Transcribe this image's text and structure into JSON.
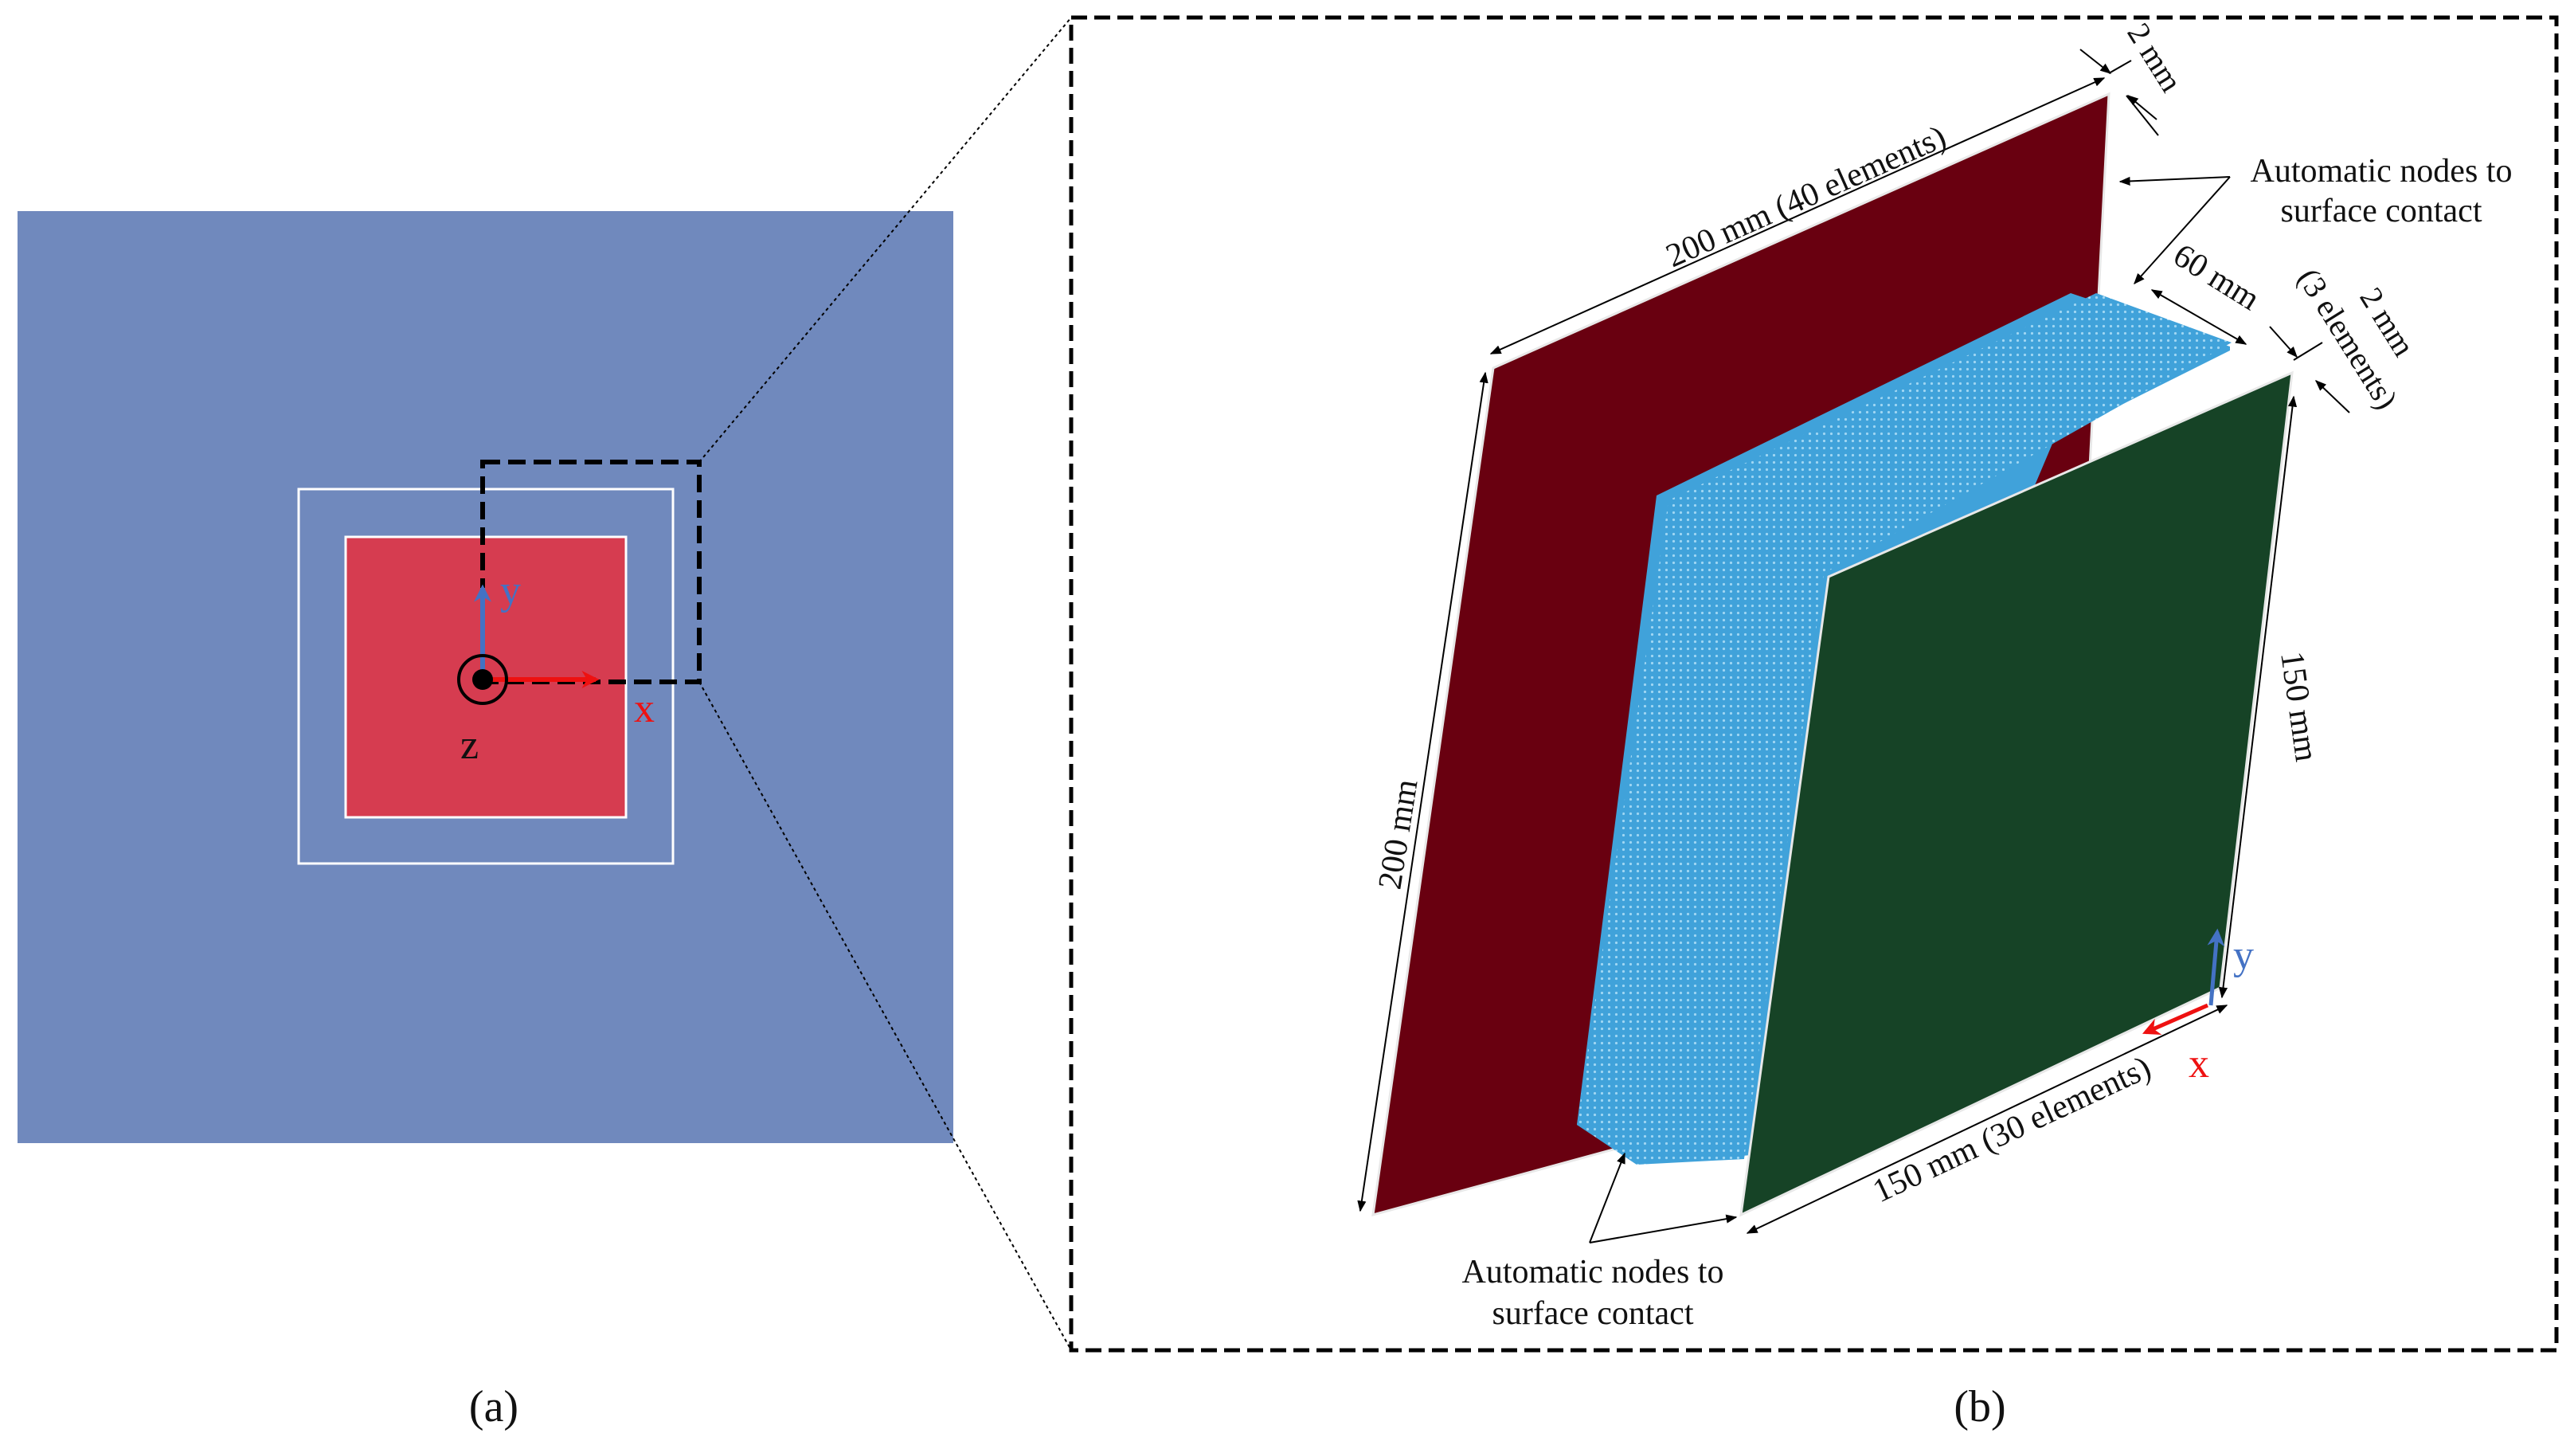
{
  "panel_a": {
    "caption": "(a)",
    "axis_x": "x",
    "axis_y": "y",
    "axis_z": "z"
  },
  "panel_b": {
    "caption": "(b)",
    "dim_back_thickness": "2 mm",
    "dim_back_width": "200 mm (40 elements)",
    "dim_back_height": "200 mm",
    "dim_core_depth": "60 mm",
    "dim_front_thickness": "2 mm",
    "dim_front_thickness_elements": "(3 elements)",
    "dim_front_height": "150 mm",
    "dim_front_width": "150 mm (30 elements)",
    "contact_label_top_line1": "Automatic nodes to",
    "contact_label_top_line2": "surface contact",
    "contact_label_bottom_line1": "Automatic nodes to",
    "contact_label_bottom_line2": "surface contact",
    "axis_x": "x",
    "axis_y": "y"
  },
  "colors": {
    "outer_plate": "#7089bd",
    "target_plate": "#d63c50",
    "back_plate": "#690010",
    "core": "#40a2da",
    "front_plate": "#164326",
    "x_axis": "#ee1111",
    "y_axis": "#4472c4"
  }
}
